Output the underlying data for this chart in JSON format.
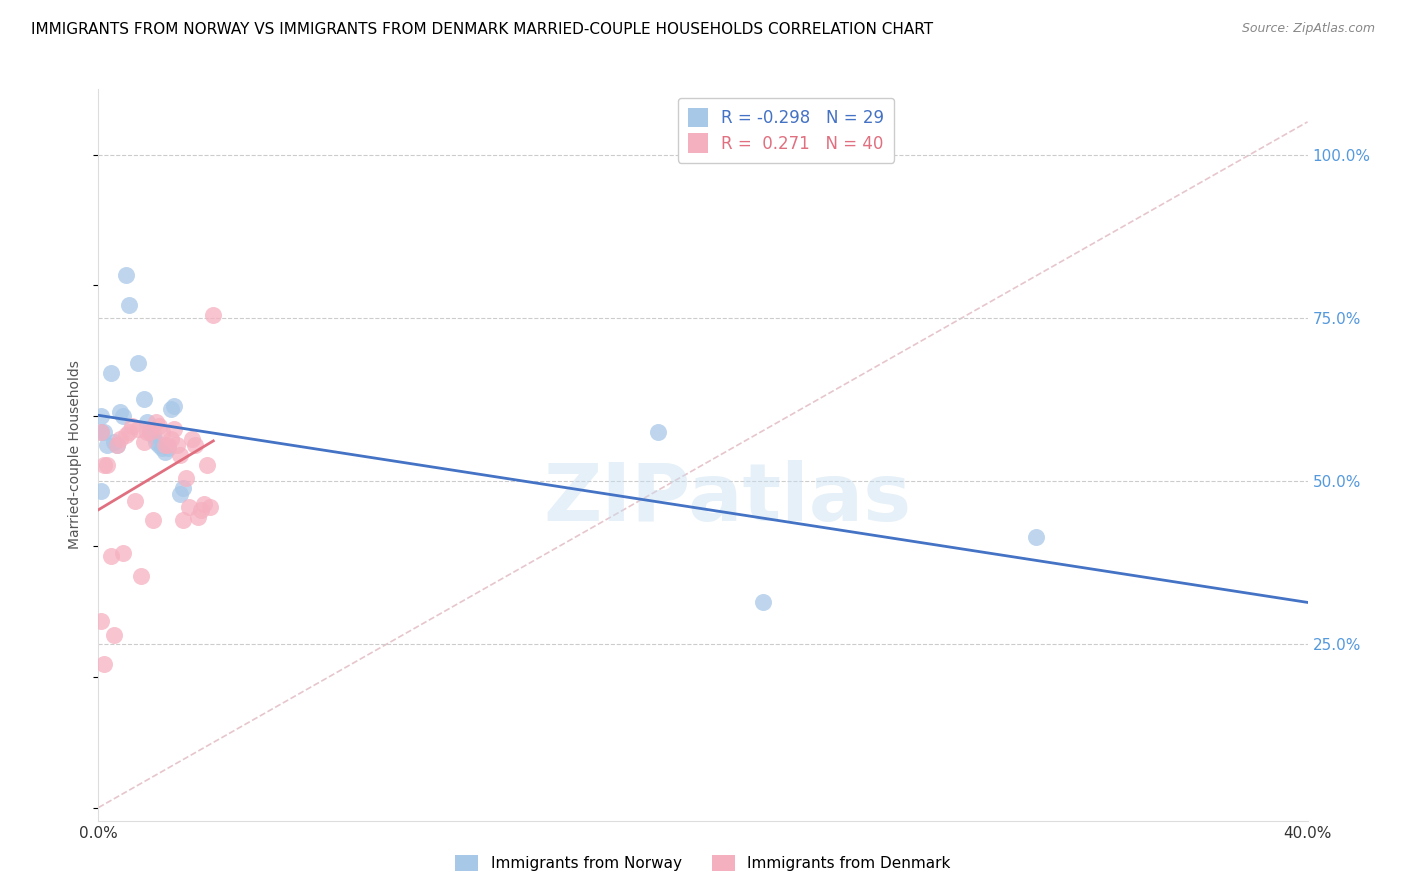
{
  "title": "IMMIGRANTS FROM NORWAY VS IMMIGRANTS FROM DENMARK MARRIED-COUPLE HOUSEHOLDS CORRELATION CHART",
  "source": "Source: ZipAtlas.com",
  "ylabel": "Married-couple Households",
  "xlim": [
    0.0,
    0.4
  ],
  "ylim": [
    -0.02,
    1.1
  ],
  "x_ticks": [
    0.0,
    0.05,
    0.1,
    0.15,
    0.2,
    0.25,
    0.3,
    0.35,
    0.4
  ],
  "y_ticks_right": [
    0.25,
    0.5,
    0.75,
    1.0
  ],
  "y_tick_labels_right": [
    "25.0%",
    "50.0%",
    "75.0%",
    "100.0%"
  ],
  "norway_R": -0.298,
  "norway_N": 29,
  "denmark_R": 0.271,
  "denmark_N": 40,
  "norway_color": "#a8c8e8",
  "denmark_color": "#f5b0c0",
  "norway_line_color": "#4472c4",
  "denmark_line_color": "#e07080",
  "diagonal_color": "#e0b8c0",
  "watermark": "ZIPatlas",
  "norway_x": [
    0.001,
    0.004,
    0.01,
    0.013,
    0.015,
    0.016,
    0.017,
    0.018,
    0.019,
    0.02,
    0.021,
    0.022,
    0.023,
    0.024,
    0.025,
    0.027,
    0.028,
    0.001,
    0.002,
    0.003,
    0.005,
    0.006,
    0.007,
    0.008,
    0.009,
    0.185,
    0.22,
    0.001,
    0.31
  ],
  "norway_y": [
    0.575,
    0.665,
    0.77,
    0.68,
    0.625,
    0.59,
    0.575,
    0.57,
    0.56,
    0.555,
    0.55,
    0.545,
    0.55,
    0.61,
    0.615,
    0.48,
    0.49,
    0.6,
    0.575,
    0.555,
    0.56,
    0.555,
    0.605,
    0.6,
    0.815,
    0.575,
    0.315,
    0.485,
    0.415
  ],
  "denmark_x": [
    0.001,
    0.003,
    0.005,
    0.007,
    0.009,
    0.011,
    0.013,
    0.015,
    0.017,
    0.019,
    0.021,
    0.023,
    0.025,
    0.027,
    0.029,
    0.031,
    0.033,
    0.035,
    0.037,
    0.002,
    0.004,
    0.006,
    0.008,
    0.01,
    0.012,
    0.014,
    0.016,
    0.018,
    0.02,
    0.022,
    0.024,
    0.026,
    0.028,
    0.03,
    0.032,
    0.034,
    0.036,
    0.038,
    0.001,
    0.002
  ],
  "denmark_y": [
    0.575,
    0.525,
    0.265,
    0.565,
    0.57,
    0.585,
    0.58,
    0.56,
    0.575,
    0.59,
    0.575,
    0.555,
    0.58,
    0.54,
    0.505,
    0.565,
    0.445,
    0.465,
    0.46,
    0.525,
    0.385,
    0.555,
    0.39,
    0.575,
    0.47,
    0.355,
    0.575,
    0.44,
    0.585,
    0.555,
    0.565,
    0.555,
    0.44,
    0.46,
    0.555,
    0.455,
    0.525,
    0.755,
    0.285,
    0.22
  ],
  "legend_norway_label": "Immigrants from Norway",
  "legend_denmark_label": "Immigrants from Denmark"
}
